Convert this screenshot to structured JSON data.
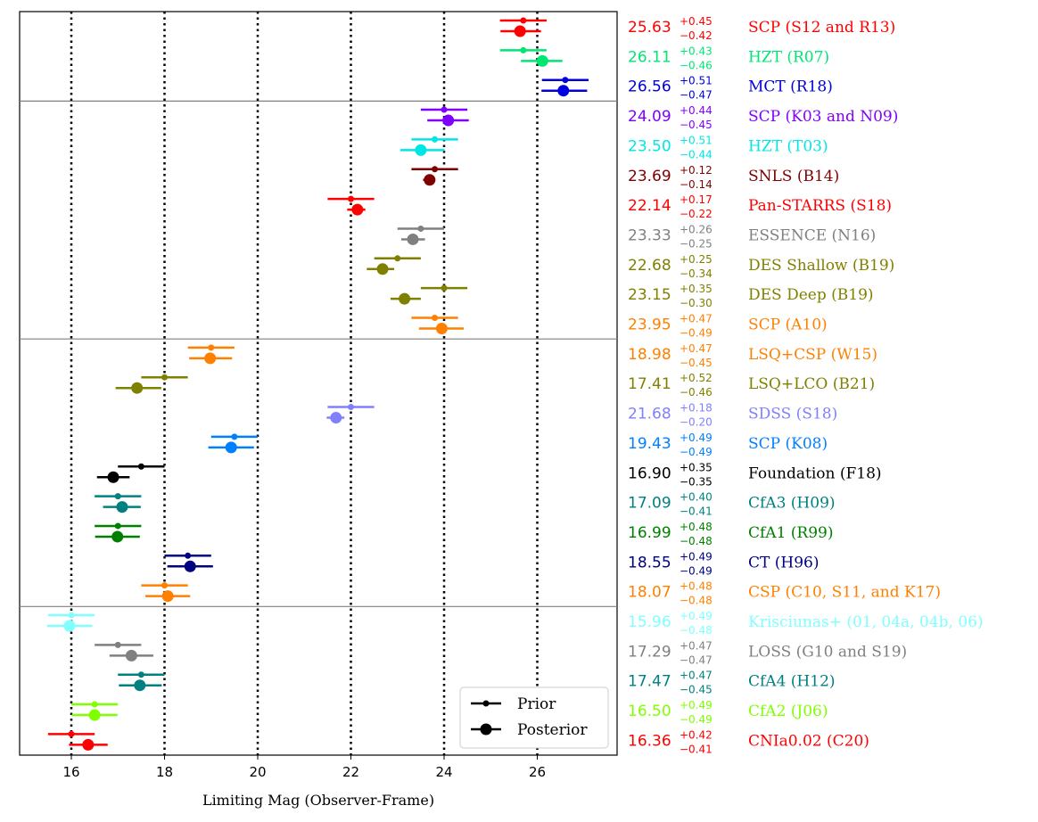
{
  "chart_data": {
    "type": "errorbar",
    "xlabel": "Limiting Mag (Observer-Frame)",
    "xlim": [
      14.9,
      27.6
    ],
    "xticks": [
      16,
      18,
      20,
      22,
      24,
      26
    ],
    "vlines": [
      16,
      18,
      20,
      22,
      24,
      26
    ],
    "group_separators_after_row": [
      2,
      10,
      19
    ],
    "legend": {
      "position": "lower-right",
      "entries": [
        "Prior",
        "Posterior"
      ]
    },
    "surveys": [
      {
        "name": "SCP (S12 and R13)",
        "color": "#ff0000",
        "value": "25.63",
        "plus": "+0.45",
        "minus": "−0.42",
        "prior": {
          "x": 25.7,
          "err": 0.5
        },
        "posterior": {
          "x": 25.63,
          "err_hi": 0.45,
          "err_lo": 0.42
        }
      },
      {
        "name": "HZT (R07)",
        "color": "#00e673",
        "value": "26.11",
        "plus": "+0.43",
        "minus": "−0.46",
        "prior": {
          "x": 25.7,
          "err": 0.5
        },
        "posterior": {
          "x": 26.11,
          "err_hi": 0.43,
          "err_lo": 0.46
        }
      },
      {
        "name": "MCT (R18)",
        "color": "#0000dd",
        "value": "26.56",
        "plus": "+0.51",
        "minus": "−0.47",
        "prior": {
          "x": 26.6,
          "err": 0.5
        },
        "posterior": {
          "x": 26.56,
          "err_hi": 0.51,
          "err_lo": 0.47
        }
      },
      {
        "name": "SCP (K03 and N09)",
        "color": "#8000ff",
        "value": "24.09",
        "plus": "+0.44",
        "minus": "−0.45",
        "prior": {
          "x": 24.0,
          "err": 0.5
        },
        "posterior": {
          "x": 24.09,
          "err_hi": 0.44,
          "err_lo": 0.45
        }
      },
      {
        "name": "HZT (T03)",
        "color": "#00e6e6",
        "value": "23.50",
        "plus": "+0.51",
        "minus": "−0.44",
        "prior": {
          "x": 23.8,
          "err": 0.5
        },
        "posterior": {
          "x": 23.5,
          "err_hi": 0.51,
          "err_lo": 0.44
        }
      },
      {
        "name": "SNLS (B14)",
        "color": "#800000",
        "value": "23.69",
        "plus": "+0.12",
        "minus": "−0.14",
        "prior": {
          "x": 23.8,
          "err": 0.5
        },
        "posterior": {
          "x": 23.69,
          "err_hi": 0.12,
          "err_lo": 0.14
        }
      },
      {
        "name": "Pan-STARRS (S18)",
        "color": "#ff0000",
        "value": "22.14",
        "plus": "+0.17",
        "minus": "−0.22",
        "prior": {
          "x": 22.0,
          "err": 0.5
        },
        "posterior": {
          "x": 22.14,
          "err_hi": 0.17,
          "err_lo": 0.22
        }
      },
      {
        "name": "ESSENCE (N16)",
        "color": "#808080",
        "value": "23.33",
        "plus": "+0.26",
        "minus": "−0.25",
        "prior": {
          "x": 23.5,
          "err": 0.5
        },
        "posterior": {
          "x": 23.33,
          "err_hi": 0.26,
          "err_lo": 0.25
        }
      },
      {
        "name": "DES Shallow (B19)",
        "color": "#808000",
        "value": "22.68",
        "plus": "+0.25",
        "minus": "−0.34",
        "prior": {
          "x": 23.0,
          "err": 0.5
        },
        "posterior": {
          "x": 22.68,
          "err_hi": 0.25,
          "err_lo": 0.34
        }
      },
      {
        "name": "DES Deep (B19)",
        "color": "#808000",
        "value": "23.15",
        "plus": "+0.35",
        "minus": "−0.30",
        "prior": {
          "x": 24.0,
          "err": 0.5
        },
        "posterior": {
          "x": 23.15,
          "err_hi": 0.35,
          "err_lo": 0.3
        }
      },
      {
        "name": "SCP (A10)",
        "color": "#ff8000",
        "value": "23.95",
        "plus": "+0.47",
        "minus": "−0.49",
        "prior": {
          "x": 23.8,
          "err": 0.5
        },
        "posterior": {
          "x": 23.95,
          "err_hi": 0.47,
          "err_lo": 0.49
        }
      },
      {
        "name": "LSQ+CSP (W15)",
        "color": "#ff8000",
        "value": "18.98",
        "plus": "+0.47",
        "minus": "−0.45",
        "prior": {
          "x": 19.0,
          "err": 0.5
        },
        "posterior": {
          "x": 18.98,
          "err_hi": 0.47,
          "err_lo": 0.45
        }
      },
      {
        "name": "LSQ+LCO (B21)",
        "color": "#808000",
        "value": "17.41",
        "plus": "+0.52",
        "minus": "−0.46",
        "prior": {
          "x": 18.0,
          "err": 0.5
        },
        "posterior": {
          "x": 17.41,
          "err_hi": 0.52,
          "err_lo": 0.46
        }
      },
      {
        "name": "SDSS (S18)",
        "color": "#8080ff",
        "value": "21.68",
        "plus": "+0.18",
        "minus": "−0.20",
        "prior": {
          "x": 22.0,
          "err": 0.5
        },
        "posterior": {
          "x": 21.68,
          "err_hi": 0.18,
          "err_lo": 0.2
        }
      },
      {
        "name": "SCP (K08)",
        "color": "#0080ff",
        "value": "19.43",
        "plus": "+0.49",
        "minus": "−0.49",
        "prior": {
          "x": 19.5,
          "err": 0.5
        },
        "posterior": {
          "x": 19.43,
          "err_hi": 0.49,
          "err_lo": 0.49
        }
      },
      {
        "name": "Foundation (F18)",
        "color": "#000000",
        "value": "16.90",
        "plus": "+0.35",
        "minus": "−0.35",
        "prior": {
          "x": 17.5,
          "err": 0.5
        },
        "posterior": {
          "x": 16.9,
          "err_hi": 0.35,
          "err_lo": 0.35
        }
      },
      {
        "name": "CfA3 (H09)",
        "color": "#008080",
        "value": "17.09",
        "plus": "+0.40",
        "minus": "−0.41",
        "prior": {
          "x": 17.0,
          "err": 0.5
        },
        "posterior": {
          "x": 17.09,
          "err_hi": 0.4,
          "err_lo": 0.41
        }
      },
      {
        "name": "CfA1 (R99)",
        "color": "#008000",
        "value": "16.99",
        "plus": "+0.48",
        "minus": "−0.48",
        "prior": {
          "x": 17.0,
          "err": 0.5
        },
        "posterior": {
          "x": 16.99,
          "err_hi": 0.48,
          "err_lo": 0.48
        }
      },
      {
        "name": "CT (H96)",
        "color": "#000080",
        "value": "18.55",
        "plus": "+0.49",
        "minus": "−0.49",
        "prior": {
          "x": 18.5,
          "err": 0.5
        },
        "posterior": {
          "x": 18.55,
          "err_hi": 0.49,
          "err_lo": 0.49
        }
      },
      {
        "name": "CSP (C10, S11, and K17)",
        "color": "#ff8000",
        "value": "18.07",
        "plus": "+0.48",
        "minus": "−0.48",
        "prior": {
          "x": 18.0,
          "err": 0.5
        },
        "posterior": {
          "x": 18.07,
          "err_hi": 0.48,
          "err_lo": 0.48
        }
      },
      {
        "name": "Krisciunas+ (01, 04a, 04b, 06)",
        "color": "#80ffff",
        "value": "15.96",
        "plus": "+0.49",
        "minus": "−0.48",
        "prior": {
          "x": 16.0,
          "err": 0.5
        },
        "posterior": {
          "x": 15.96,
          "err_hi": 0.49,
          "err_lo": 0.48
        }
      },
      {
        "name": "LOSS (G10 and S19)",
        "color": "#808080",
        "value": "17.29",
        "plus": "+0.47",
        "minus": "−0.47",
        "prior": {
          "x": 17.0,
          "err": 0.5
        },
        "posterior": {
          "x": 17.29,
          "err_hi": 0.47,
          "err_lo": 0.47
        }
      },
      {
        "name": "CfA4 (H12)",
        "color": "#008080",
        "value": "17.47",
        "plus": "+0.47",
        "minus": "−0.45",
        "prior": {
          "x": 17.5,
          "err": 0.5
        },
        "posterior": {
          "x": 17.47,
          "err_hi": 0.47,
          "err_lo": 0.45
        }
      },
      {
        "name": "CfA2 (J06)",
        "color": "#80ff00",
        "value": "16.50",
        "plus": "+0.49",
        "minus": "−0.49",
        "prior": {
          "x": 16.5,
          "err": 0.5
        },
        "posterior": {
          "x": 16.5,
          "err_hi": 0.49,
          "err_lo": 0.49
        }
      },
      {
        "name": "CNIa0.02 (C20)",
        "color": "#ff0000",
        "value": "16.36",
        "plus": "+0.42",
        "minus": "−0.41",
        "prior": {
          "x": 16.0,
          "err": 0.5
        },
        "posterior": {
          "x": 16.36,
          "err_hi": 0.42,
          "err_lo": 0.41
        }
      }
    ]
  }
}
